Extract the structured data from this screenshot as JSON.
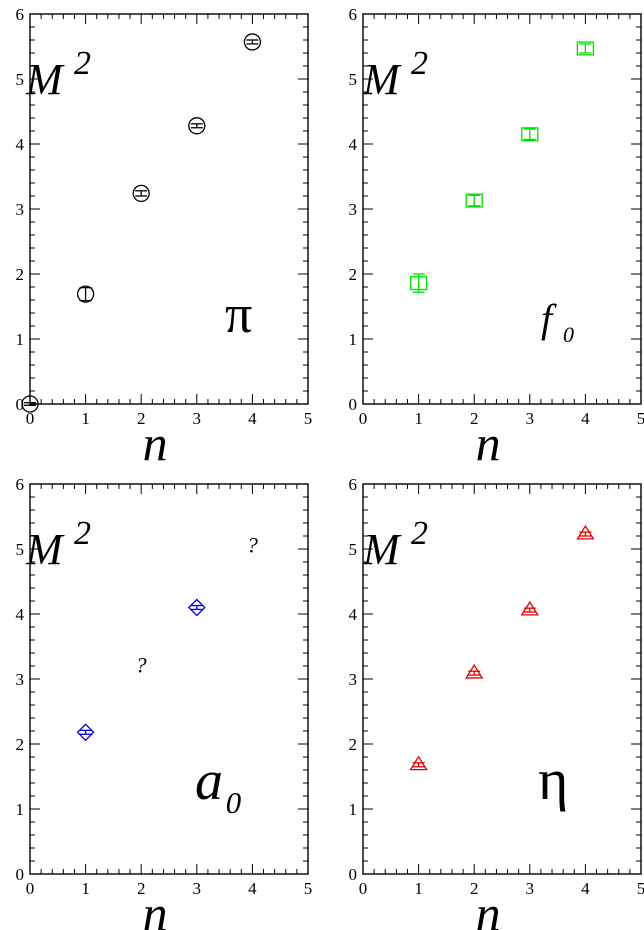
{
  "chart_data": [
    {
      "id": "pi",
      "type": "scatter",
      "ylabel": "M",
      "ylabel_exp": "2",
      "xlabel": "n",
      "panel_label": "π",
      "panel_label_sub": "",
      "xlim": [
        0,
        5
      ],
      "ylim": [
        0,
        6
      ],
      "xticks": [
        "0",
        "1",
        "2",
        "3",
        "4",
        "5"
      ],
      "yticks": [
        "0",
        "1",
        "2",
        "3",
        "4",
        "5",
        "6"
      ],
      "marker": "circle",
      "color": "#000000",
      "points": [
        {
          "x": 0,
          "y": 0.0,
          "err": 0.02
        },
        {
          "x": 1,
          "y": 1.69,
          "err": 0.1
        },
        {
          "x": 2,
          "y": 3.24,
          "err": 0.04
        },
        {
          "x": 3,
          "y": 4.28,
          "err": 0.03
        },
        {
          "x": 4,
          "y": 5.57,
          "err": 0.03
        }
      ],
      "annotations": []
    },
    {
      "id": "f0",
      "type": "scatter",
      "ylabel": "M",
      "ylabel_exp": "2",
      "xlabel": "n",
      "panel_label": "f",
      "panel_label_sub": "0",
      "xlim": [
        0,
        5
      ],
      "ylim": [
        0,
        6
      ],
      "xticks": [
        "0",
        "1",
        "2",
        "3",
        "4",
        "5"
      ],
      "yticks": [
        "0",
        "1",
        "2",
        "3",
        "4",
        "5",
        "6"
      ],
      "marker": "square",
      "color": "#00e000",
      "points": [
        {
          "x": 1,
          "y": 1.86,
          "err": 0.14
        },
        {
          "x": 2,
          "y": 3.13,
          "err": 0.08
        },
        {
          "x": 3,
          "y": 4.15,
          "err": 0.08
        },
        {
          "x": 4,
          "y": 5.47,
          "err": 0.07
        }
      ],
      "annotations": []
    },
    {
      "id": "a0",
      "type": "scatter",
      "ylabel": "M",
      "ylabel_exp": "2",
      "xlabel": "n",
      "panel_label": "a",
      "panel_label_sub": "0",
      "xlim": [
        0,
        5
      ],
      "ylim": [
        0,
        6
      ],
      "xticks": [
        "0",
        "1",
        "2",
        "3",
        "4",
        "5"
      ],
      "yticks": [
        "0",
        "1",
        "2",
        "3",
        "4",
        "5",
        "6"
      ],
      "marker": "diamond",
      "color": "#0000e0",
      "points": [
        {
          "x": 1,
          "y": 2.18,
          "err": 0.03
        },
        {
          "x": 3,
          "y": 4.1,
          "err": 0.03
        }
      ],
      "annotations": [
        {
          "x": 1.9,
          "y": 3.1,
          "text": "?"
        },
        {
          "x": 3.9,
          "y": 4.95,
          "text": "?"
        }
      ]
    },
    {
      "id": "eta",
      "type": "scatter",
      "ylabel": "M",
      "ylabel_exp": "2",
      "xlabel": "n",
      "panel_label": "η",
      "panel_label_sub": "",
      "xlim": [
        0,
        5
      ],
      "ylim": [
        0,
        6
      ],
      "xticks": [
        "0",
        "1",
        "2",
        "3",
        "4",
        "5"
      ],
      "yticks": [
        "0",
        "1",
        "2",
        "3",
        "4",
        "5",
        "6"
      ],
      "marker": "triangle",
      "color": "#e00000",
      "points": [
        {
          "x": 1,
          "y": 1.68,
          "err": 0.03
        },
        {
          "x": 2,
          "y": 3.09,
          "err": 0.03
        },
        {
          "x": 3,
          "y": 4.06,
          "err": 0.03
        },
        {
          "x": 4,
          "y": 5.23,
          "err": 0.03
        }
      ],
      "annotations": []
    }
  ]
}
